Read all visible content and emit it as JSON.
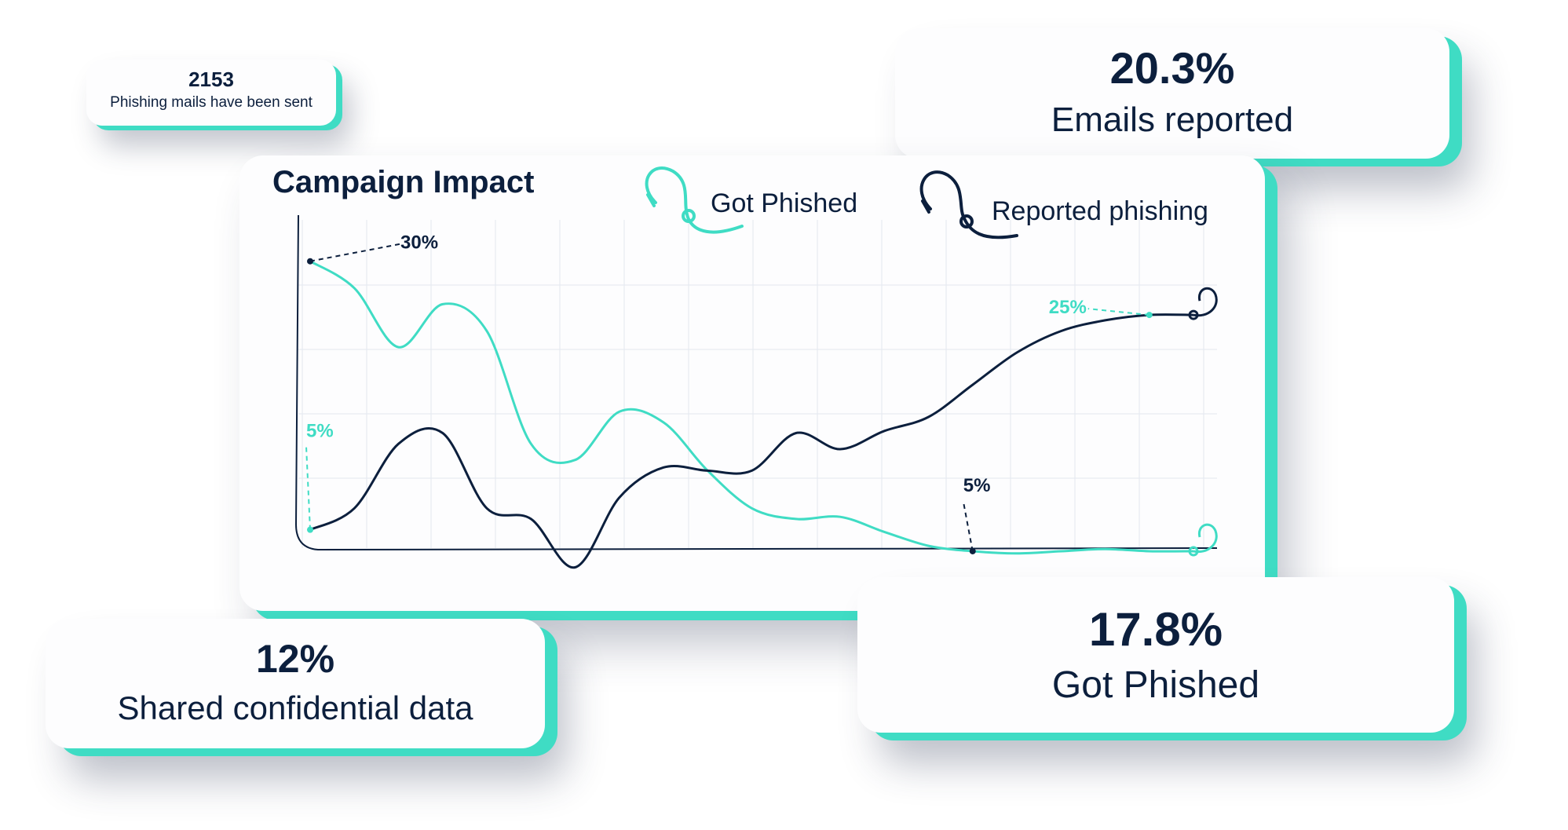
{
  "cards": {
    "sent": {
      "value": "2153",
      "label": "Phishing mails have been sent"
    },
    "reported": {
      "value": "20.3%",
      "label": "Emails reported"
    },
    "shared": {
      "value": "12%",
      "label": "Shared confidential data"
    },
    "phished": {
      "value": "17.8%",
      "label": "Got Phished"
    }
  },
  "colors": {
    "teal": "#3fdcc4",
    "navy": "#0c1f3d",
    "grid": "#e4e8ef",
    "accent_icon": "fishing-hook-icon"
  },
  "chart_data": {
    "type": "line",
    "title": "Campaign Impact",
    "x": [
      0,
      1,
      2,
      3,
      4,
      5,
      6,
      7,
      8,
      9,
      10,
      11,
      12,
      13,
      14,
      15,
      16,
      17,
      18,
      19,
      20
    ],
    "grid": true,
    "legend": "top",
    "series": [
      {
        "name": "Got Phished",
        "color": "#3fdcc4",
        "values": [
          30,
          27.5,
          22,
          26,
          23.5,
          13,
          11.5,
          16,
          15,
          10.5,
          7,
          6,
          6.2,
          4.8,
          3.5,
          3,
          2.8,
          3,
          3.2,
          3,
          3
        ]
      },
      {
        "name": "Reported phishing",
        "color": "#0c1f3d",
        "values": [
          5,
          7,
          13,
          14,
          7,
          6,
          1.5,
          8,
          10.8,
          10.5,
          10.5,
          14,
          12.5,
          14.2,
          15.5,
          18.5,
          21.5,
          23.5,
          24.5,
          25,
          25
        ]
      }
    ],
    "annotations": [
      {
        "text": "30%",
        "series": "Got Phished"
      },
      {
        "text": "5%",
        "series": "Reported phishing"
      },
      {
        "text": "25%",
        "series": "Reported phishing"
      },
      {
        "text": "5%",
        "series": "Got Phished"
      }
    ]
  }
}
